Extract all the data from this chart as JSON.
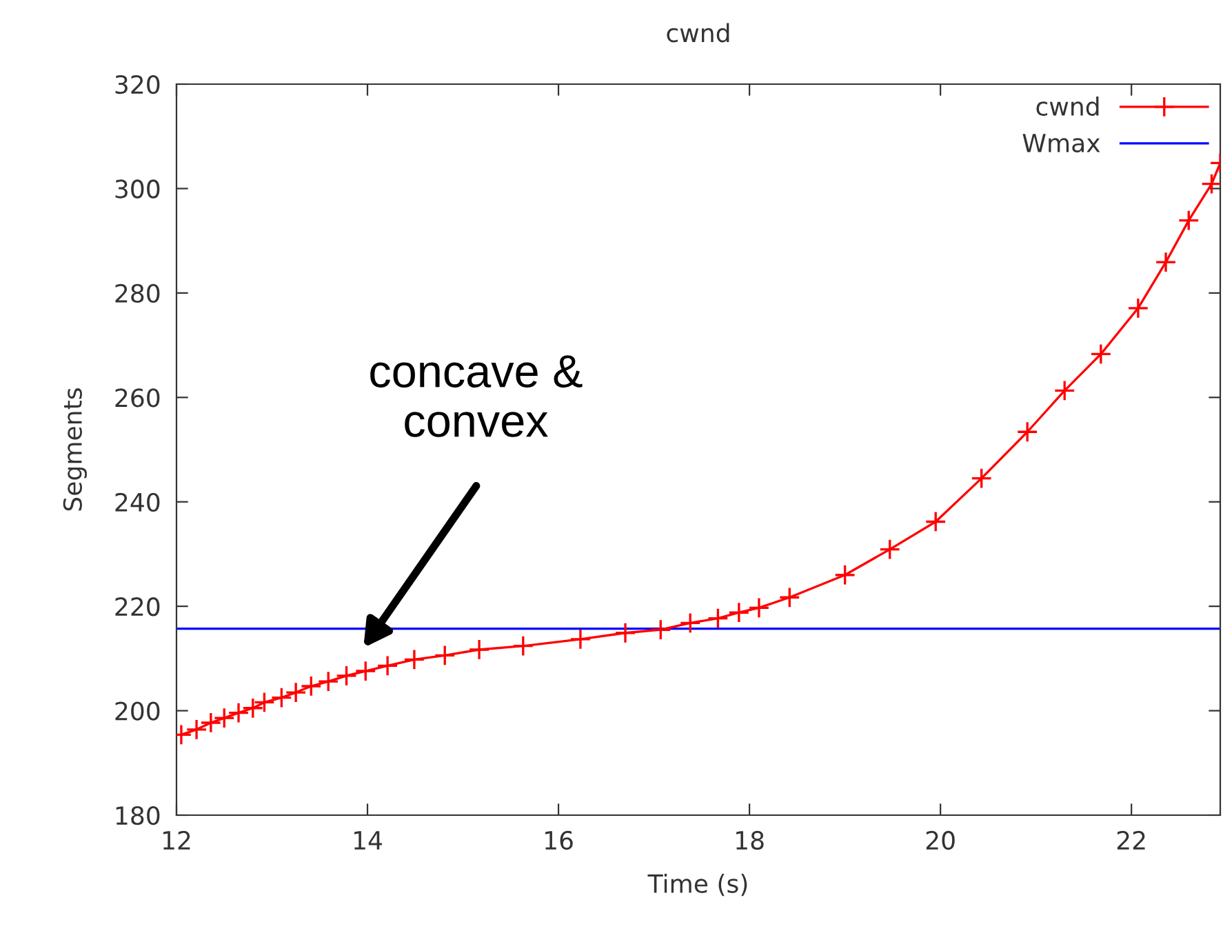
{
  "chart_data": {
    "type": "line",
    "title": "cwnd",
    "xlabel": "Time (s)",
    "ylabel": "Segments",
    "xlim": [
      12,
      22.93
    ],
    "xticks": [
      12,
      14,
      16,
      18,
      20,
      22
    ],
    "ylim": [
      180,
      320
    ],
    "yticks": [
      180,
      200,
      220,
      240,
      260,
      280,
      300,
      320
    ],
    "grid": false,
    "legend": "top right",
    "series": [
      {
        "name": "cwnd",
        "color": "#ff0000",
        "marker": "cross",
        "x": [
          12.05,
          12.21,
          12.36,
          12.5,
          12.65,
          12.8,
          12.92,
          13.1,
          13.25,
          13.41,
          13.59,
          13.78,
          13.98,
          14.21,
          14.49,
          14.81,
          15.17,
          15.63,
          16.23,
          16.7,
          17.07,
          17.38,
          17.67,
          17.89,
          18.1,
          18.42,
          19.0,
          19.47,
          19.95,
          20.43,
          20.91,
          21.3,
          21.68,
          22.07,
          22.36,
          22.6,
          22.84,
          22.93
        ],
        "values": [
          195.4,
          196.4,
          197.7,
          198.6,
          199.6,
          200.5,
          201.6,
          202.5,
          203.5,
          204.7,
          205.6,
          206.7,
          207.6,
          208.6,
          209.8,
          210.6,
          211.7,
          212.4,
          213.7,
          214.9,
          215.5,
          216.8,
          217.7,
          218.8,
          219.7,
          221.7,
          226.0,
          230.9,
          236.2,
          244.5,
          253.4,
          261.3,
          268.3,
          277.1,
          285.9,
          293.9,
          300.9,
          304.9
        ]
      },
      {
        "name": "Wmax",
        "color": "#0000ff",
        "marker": "none",
        "x": [
          12,
          22.93
        ],
        "values": [
          215.7,
          215.7
        ]
      }
    ],
    "annotations": [
      "concave &\nconvex"
    ]
  }
}
